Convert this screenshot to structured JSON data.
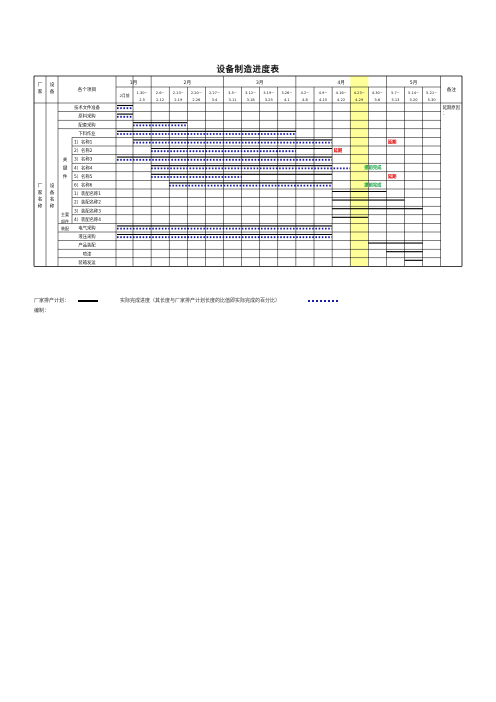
{
  "title": "设备制造进度表",
  "header": {
    "factory": "厂家",
    "equipment": "设备",
    "items": "各个项目",
    "remarks": "备注",
    "months": [
      "1月",
      "2月",
      "3月",
      "4月",
      "5月"
    ],
    "first_week": "2月前",
    "weeks": [
      {
        "top": "1.30~",
        "bottom": "2.5"
      },
      {
        "top": "2.6~",
        "bottom": "2.12"
      },
      {
        "top": "2.13~",
        "bottom": "2.19"
      },
      {
        "top": "2.20~",
        "bottom": "2.26"
      },
      {
        "top": "2.27~",
        "bottom": "3.4"
      },
      {
        "top": "3.5~",
        "bottom": "3.11"
      },
      {
        "top": "3.12~",
        "bottom": "3.18"
      },
      {
        "top": "3.19~",
        "bottom": "3.25"
      },
      {
        "top": "3.26~",
        "bottom": "4.1"
      },
      {
        "top": "4.2~",
        "bottom": "4.8"
      },
      {
        "top": "4.9~",
        "bottom": "4.15"
      },
      {
        "top": "4.16~",
        "bottom": "4.22"
      },
      {
        "top": "4.23~",
        "bottom": "4.29"
      },
      {
        "top": "4.30~",
        "bottom": "5.6"
      },
      {
        "top": "5.7~",
        "bottom": "5.13"
      },
      {
        "top": "5.14~",
        "bottom": "5.20"
      },
      {
        "top": "5.21~",
        "bottom": "5.30"
      }
    ]
  },
  "left_labels": {
    "factory_name": "厂家名称",
    "equipment_name": "设备名称",
    "key_parts": "关键件",
    "main_parts": "主要部件装配"
  },
  "rows": [
    "技术文件准备",
    "原料采购",
    "配套采购",
    "下料作业",
    "1）名称1",
    "2）名称2",
    "3）名称3",
    "4）名称4",
    "5）名称5",
    "6）名称6",
    "1）装配名称1",
    "2）装配名称2",
    "3）装配名称3",
    "4）装配名称4",
    "电气采购",
    "液压采购",
    "产品装配",
    "喷漆",
    "装箱发运"
  ],
  "notes": {
    "delay_reason": "延期原因",
    "delay_reason_2": "：",
    "delay": "延期",
    "early": "提前完成"
  },
  "footer": {
    "plan_label": "厂家排产计划：",
    "actual_label": "实际完成进度（其长度与厂家排产计划长度的比值即实际完成的百分比）",
    "prepared_by": "编制："
  },
  "colors": {
    "plan": "#000000",
    "actual": "#1a1aa8",
    "delay": "#e00000",
    "early": "#10a040",
    "highlight": "#ffff99"
  }
}
